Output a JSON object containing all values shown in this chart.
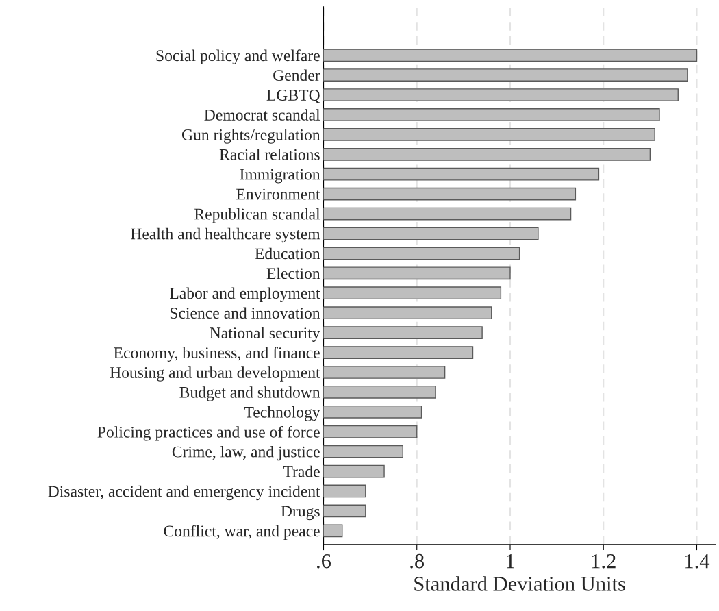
{
  "chart_data": {
    "type": "bar",
    "orientation": "horizontal",
    "xlabel": "Standard Deviation Units",
    "categories": [
      "Social policy and welfare",
      "Gender",
      "LGBTQ",
      "Democrat scandal",
      "Gun rights/regulation",
      "Racial relations",
      "Immigration",
      "Environment",
      "Republican scandal",
      "Health and healthcare system",
      "Education",
      "Election",
      "Labor and employment",
      "Science and innovation",
      "National security",
      "Economy, business, and finance",
      "Housing and urban development",
      "Budget and shutdown",
      "Technology",
      "Policing practices and use of force",
      "Crime, law, and justice",
      "Trade",
      "Disaster, accident and emergency incident",
      "Drugs",
      "Conflict, war, and peace"
    ],
    "values": [
      1.4,
      1.38,
      1.36,
      1.32,
      1.31,
      1.3,
      1.19,
      1.14,
      1.13,
      1.06,
      1.02,
      1.0,
      0.98,
      0.96,
      0.94,
      0.92,
      0.86,
      0.84,
      0.81,
      0.8,
      0.77,
      0.73,
      0.69,
      0.69,
      0.64
    ],
    "color": "#bebebe",
    "xlim": [
      0.6,
      1.44
    ],
    "xticks": [
      {
        "value": 0.6,
        "label": ".6"
      },
      {
        "value": 0.8,
        "label": ".8"
      },
      1,
      1.2,
      1.4
    ],
    "grid": "x"
  }
}
